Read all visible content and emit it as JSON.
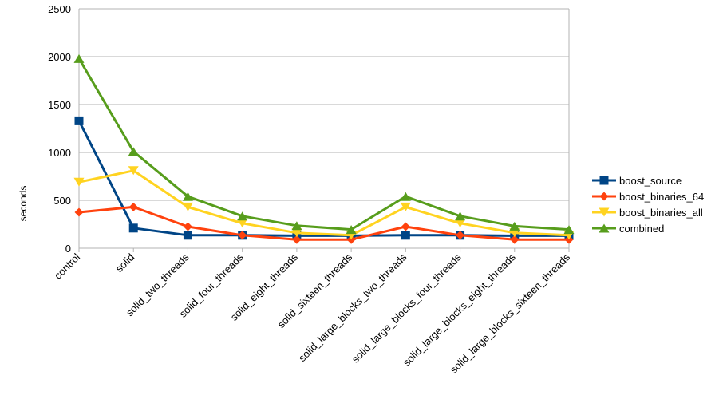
{
  "chart_data": {
    "type": "line",
    "title": "",
    "xlabel": "",
    "ylabel": "seconds",
    "ylim": [
      0,
      2500
    ],
    "yticks": [
      0,
      500,
      1000,
      1500,
      2000,
      2500
    ],
    "grid": true,
    "legend_position": "right",
    "categories": [
      "control",
      "solid",
      "solid_two_threads",
      "solid_four_threads",
      "solid_eight_threads",
      "solid_sixteen_threads",
      "solid_large_blocks_two_threads",
      "solid_large_blocks_four_threads",
      "solid_large_blocks_eight_threads",
      "solid_large_blocks_sixteen_threads"
    ],
    "series": [
      {
        "name": "boost_source",
        "color": "#004586",
        "marker": "square",
        "values": [
          1330,
          210,
          135,
          135,
          130,
          130,
          135,
          135,
          130,
          130
        ]
      },
      {
        "name": "boost_binaries_64",
        "color": "#ff420e",
        "marker": "diamond",
        "values": [
          375,
          430,
          225,
          135,
          90,
          90,
          225,
          135,
          90,
          90
        ]
      },
      {
        "name": "boost_binaries_all",
        "color": "#ffd320",
        "marker": "triangle-down",
        "values": [
          690,
          810,
          430,
          260,
          160,
          135,
          430,
          260,
          160,
          135
        ]
      },
      {
        "name": "combined",
        "color": "#579d1c",
        "marker": "triangle-up",
        "values": [
          1980,
          1010,
          540,
          335,
          235,
          195,
          540,
          335,
          230,
          195
        ]
      }
    ]
  }
}
